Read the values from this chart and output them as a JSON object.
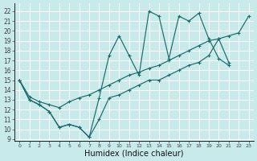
{
  "xlabel": "Humidex (Indice chaleur)",
  "bg_color": "#c8eaea",
  "grid_color": "#ffffff",
  "line_color": "#1a6b6b",
  "xlim": [
    -0.5,
    23.5
  ],
  "ylim": [
    8.8,
    22.8
  ],
  "yticks": [
    9,
    10,
    11,
    12,
    13,
    14,
    15,
    16,
    17,
    18,
    19,
    20,
    21,
    22
  ],
  "xticks": [
    0,
    1,
    2,
    3,
    4,
    5,
    6,
    7,
    8,
    9,
    10,
    11,
    12,
    13,
    14,
    15,
    16,
    17,
    18,
    19,
    20,
    21,
    22,
    23
  ],
  "line1_x": [
    0,
    1,
    2,
    3,
    4,
    5,
    6,
    7,
    8,
    9,
    10,
    11,
    12,
    13,
    14,
    15,
    16,
    17,
    18,
    19,
    20,
    21
  ],
  "line1_y": [
    15,
    13,
    12.5,
    11.8,
    10.2,
    10.5,
    10.2,
    9.2,
    13.2,
    17.5,
    19.5,
    17.5,
    15.5,
    22.0,
    21.5,
    17.2,
    21.5,
    21.0,
    21.8,
    19.2,
    17.2,
    16.5
  ],
  "line2_x": [
    0,
    1,
    2,
    3,
    4,
    5,
    6,
    7,
    8,
    9,
    10,
    11,
    12,
    13,
    14,
    15,
    16,
    17,
    18,
    19,
    20,
    21,
    22,
    23
  ],
  "line2_y": [
    15.0,
    13.3,
    12.8,
    12.5,
    12.2,
    12.8,
    13.2,
    13.5,
    14.0,
    14.5,
    15.0,
    15.5,
    15.8,
    16.2,
    16.5,
    17.0,
    17.5,
    18.0,
    18.5,
    19.0,
    19.2,
    19.5,
    19.8,
    21.5
  ],
  "line3_x": [
    0,
    1,
    2,
    3,
    4,
    5,
    6,
    7,
    8,
    9,
    10,
    11,
    12,
    13,
    14,
    15,
    16,
    17,
    18,
    19,
    20,
    21,
    22,
    23
  ],
  "line3_y": [
    15.0,
    13.0,
    12.5,
    11.8,
    10.2,
    10.5,
    10.2,
    9.2,
    11.0,
    13.2,
    13.5,
    14.0,
    14.5,
    15.0,
    15.0,
    15.5,
    16.0,
    16.5,
    16.8,
    17.5,
    19.2,
    16.8,
    null,
    null
  ]
}
